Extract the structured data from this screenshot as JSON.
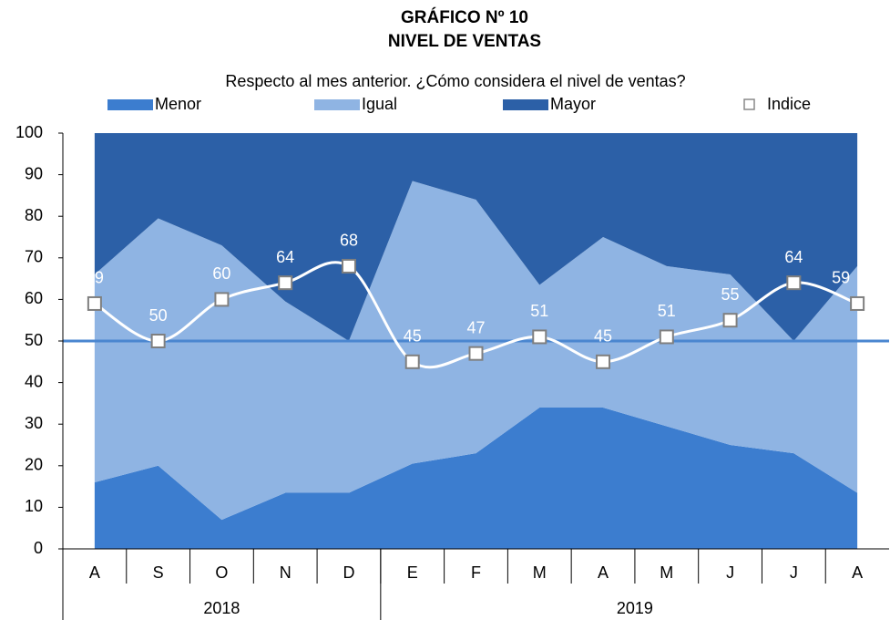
{
  "chart_data": {
    "type": "area",
    "title": [
      "GRÁFICO Nº 10",
      "NIVEL DE VENTAS"
    ],
    "subtitle": "Respecto al mes anterior. ¿Cómo considera el nivel de ventas?",
    "categories": [
      "A",
      "S",
      "O",
      "N",
      "D",
      "E",
      "F",
      "M",
      "A",
      "M",
      "J",
      "J",
      "A"
    ],
    "groups": [
      {
        "label": "2018",
        "span": 5
      },
      {
        "label": "2019",
        "span": 8
      }
    ],
    "series": [
      {
        "name": "Menor",
        "type": "area",
        "color": "#3c7dcf",
        "values": [
          16,
          20,
          7,
          13.5,
          13.5,
          20.5,
          23,
          34,
          34,
          29.5,
          25,
          23,
          13.5
        ]
      },
      {
        "name": "Igual",
        "type": "area",
        "color": "#8fb4e3",
        "values": [
          50,
          59.5,
          66,
          46,
          36.5,
          68,
          61,
          29.5,
          41,
          38.5,
          41,
          27,
          54.5
        ]
      },
      {
        "name": "Mayor",
        "type": "area",
        "color": "#2c60a7",
        "values": [
          34,
          20.5,
          27,
          40.5,
          50,
          11.5,
          16,
          36.5,
          25,
          32,
          34,
          50,
          32
        ]
      },
      {
        "name": "Indice",
        "type": "line",
        "color": "#ffffff",
        "values": [
          59,
          50,
          60,
          64,
          68,
          45,
          47,
          51,
          45,
          51,
          55,
          64,
          59
        ]
      }
    ],
    "reference_line": {
      "value": 50,
      "color": "#4a86d0"
    },
    "ylim": [
      0,
      100
    ],
    "yticks": [
      0,
      10,
      20,
      30,
      40,
      50,
      60,
      70,
      80,
      90,
      100
    ]
  }
}
